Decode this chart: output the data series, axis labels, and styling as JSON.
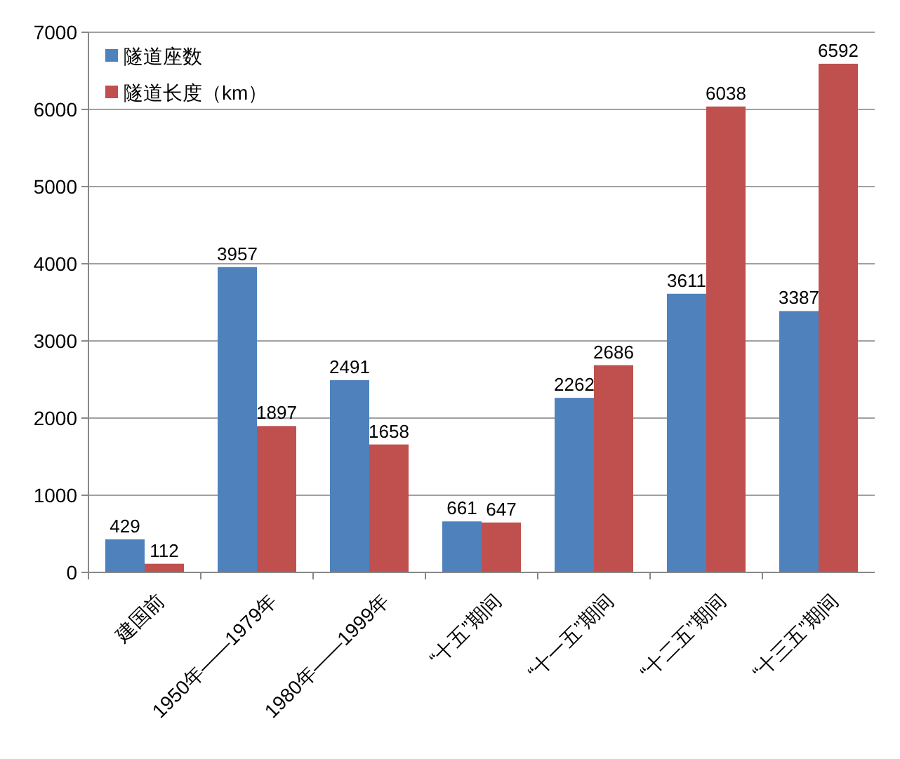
{
  "chart_data": {
    "type": "bar",
    "categories": [
      "建国前",
      "1950年——1979年",
      "1980年——1999年",
      "“十五”期间",
      "“十一五”期间",
      "“十二五”期间",
      "“十三五”期间"
    ],
    "series": [
      {
        "name": "隧道座数",
        "color": "#4f81bd",
        "values": [
          429,
          3957,
          2491,
          661,
          2262,
          3611,
          3387
        ]
      },
      {
        "name": "隧道长度（km）",
        "color": "#c0504d",
        "values": [
          112,
          1897,
          1658,
          647,
          2686,
          6038,
          6592
        ]
      }
    ],
    "ylim": [
      0,
      7000
    ],
    "yticks": [
      0,
      1000,
      2000,
      3000,
      4000,
      5000,
      6000,
      7000
    ],
    "grid": "y",
    "legend": "top left",
    "data_labels": true
  }
}
